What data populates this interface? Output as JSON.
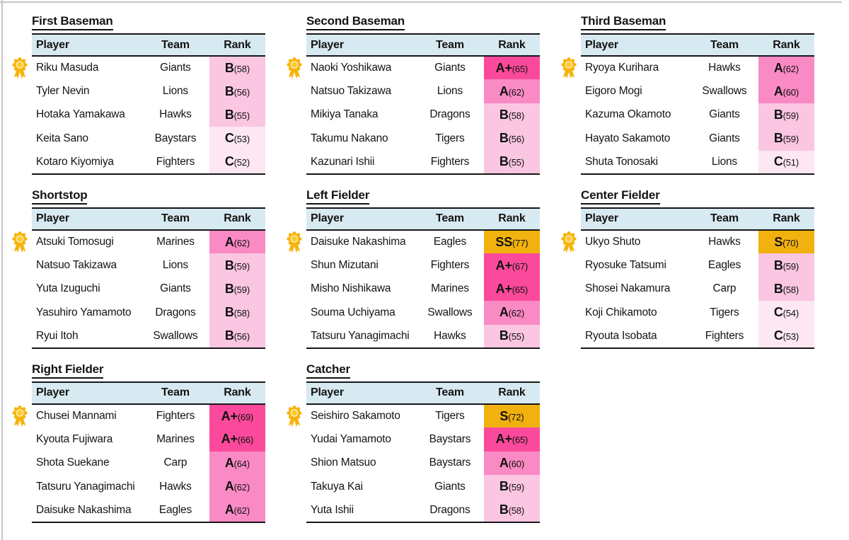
{
  "columns": [
    "Player",
    "Team",
    "Rank"
  ],
  "colors": {
    "header_bg": "#d8eaf1",
    "rank_ss": "#f1b10e",
    "rank_a_plus": "#fb4a9b",
    "rank_a": "#fa8ac4",
    "rank_b": "#fac6e2",
    "rank_c": "#fce7f2",
    "medal_gold": "#f6b40b",
    "medal_center": "#ffca2b",
    "medal_ring": "#ffe9ae",
    "border_black": "#161616"
  },
  "tables": [
    {
      "title": "First Baseman",
      "rows": [
        {
          "player": "Riku Masuda",
          "team": "Giants",
          "rank": "B",
          "score": 58,
          "medal": true
        },
        {
          "player": "Tyler Nevin",
          "team": "Lions",
          "rank": "B",
          "score": 56
        },
        {
          "player": "Hotaka Yamakawa",
          "team": "Hawks",
          "rank": "B",
          "score": 55
        },
        {
          "player": "Keita Sano",
          "team": "Baystars",
          "rank": "C",
          "score": 53
        },
        {
          "player": "Kotaro Kiyomiya",
          "team": "Fighters",
          "rank": "C",
          "score": 52
        }
      ]
    },
    {
      "title": "Second Baseman",
      "rows": [
        {
          "player": "Naoki Yoshikawa",
          "team": "Giants",
          "rank": "A+",
          "score": 65,
          "medal": true
        },
        {
          "player": "Natsuo Takizawa",
          "team": "Lions",
          "rank": "A",
          "score": 62
        },
        {
          "player": "Mikiya Tanaka",
          "team": "Dragons",
          "rank": "B",
          "score": 58
        },
        {
          "player": "Takumu Nakano",
          "team": "Tigers",
          "rank": "B",
          "score": 56
        },
        {
          "player": "Kazunari Ishii",
          "team": "Fighters",
          "rank": "B",
          "score": 55
        }
      ]
    },
    {
      "title": "Third Baseman",
      "rows": [
        {
          "player": "Ryoya Kurihara",
          "team": "Hawks",
          "rank": "A",
          "score": 62,
          "medal": true
        },
        {
          "player": "Eigoro Mogi",
          "team": "Swallows",
          "rank": "A",
          "score": 60
        },
        {
          "player": "Kazuma Okamoto",
          "team": "Giants",
          "rank": "B",
          "score": 59
        },
        {
          "player": "Hayato Sakamoto",
          "team": "Giants",
          "rank": "B",
          "score": 59
        },
        {
          "player": "Shuta Tonosaki",
          "team": "Lions",
          "rank": "C",
          "score": 51
        }
      ]
    },
    {
      "title": "Shortstop",
      "rows": [
        {
          "player": "Atsuki Tomosugi",
          "team": "Marines",
          "rank": "A",
          "score": 62,
          "medal": true
        },
        {
          "player": "Natsuo Takizawa",
          "team": "Lions",
          "rank": "B",
          "score": 59
        },
        {
          "player": "Yuta Izuguchi",
          "team": "Giants",
          "rank": "B",
          "score": 59
        },
        {
          "player": "Yasuhiro Yamamoto",
          "team": "Dragons",
          "rank": "B",
          "score": 58
        },
        {
          "player": "Ryui Itoh",
          "team": "Swallows",
          "rank": "B",
          "score": 56
        }
      ]
    },
    {
      "title": "Left Fielder",
      "rows": [
        {
          "player": "Daisuke Nakashima",
          "team": "Eagles",
          "rank": "SS",
          "score": 77,
          "medal": true
        },
        {
          "player": "Shun Mizutani",
          "team": "Fighters",
          "rank": "A+",
          "score": 67
        },
        {
          "player": "Misho Nishikawa",
          "team": "Marines",
          "rank": "A+",
          "score": 65
        },
        {
          "player": "Souma Uchiyama",
          "team": "Swallows",
          "rank": "A",
          "score": 62
        },
        {
          "player": "Tatsuru Yanagimachi",
          "team": "Hawks",
          "rank": "B",
          "score": 55
        }
      ]
    },
    {
      "title": "Center Fielder",
      "rows": [
        {
          "player": "Ukyo Shuto",
          "team": "Hawks",
          "rank": "S",
          "score": 70,
          "medal": true
        },
        {
          "player": "Ryosuke Tatsumi",
          "team": "Eagles",
          "rank": "B",
          "score": 59
        },
        {
          "player": "Shosei Nakamura",
          "team": "Carp",
          "rank": "B",
          "score": 58
        },
        {
          "player": "Koji Chikamoto",
          "team": "Tigers",
          "rank": "C",
          "score": 54
        },
        {
          "player": "Ryouta Isobata",
          "team": "Fighters",
          "rank": "C",
          "score": 53
        }
      ]
    },
    {
      "title": "Right Fielder",
      "rows": [
        {
          "player": "Chusei Mannami",
          "team": "Fighters",
          "rank": "A+",
          "score": 69,
          "medal": true
        },
        {
          "player": "Kyouta Fujiwara",
          "team": "Marines",
          "rank": "A+",
          "score": 66
        },
        {
          "player": "Shota Suekane",
          "team": "Carp",
          "rank": "A",
          "score": 64
        },
        {
          "player": "Tatsuru Yanagimachi",
          "team": "Hawks",
          "rank": "A",
          "score": 62
        },
        {
          "player": "Daisuke Nakashima",
          "team": "Eagles",
          "rank": "A",
          "score": 62
        }
      ]
    },
    {
      "title": "Catcher",
      "rows": [
        {
          "player": "Seishiro Sakamoto",
          "team": "Tigers",
          "rank": "S",
          "score": 72,
          "medal": true
        },
        {
          "player": "Yudai Yamamoto",
          "team": "Baystars",
          "rank": "A+",
          "score": 65
        },
        {
          "player": "Shion Matsuo",
          "team": "Baystars",
          "rank": "A",
          "score": 60
        },
        {
          "player": "Takuya Kai",
          "team": "Giants",
          "rank": "B",
          "score": 59
        },
        {
          "player": "Yuta Ishii",
          "team": "Dragons",
          "rank": "B",
          "score": 58
        }
      ]
    }
  ]
}
